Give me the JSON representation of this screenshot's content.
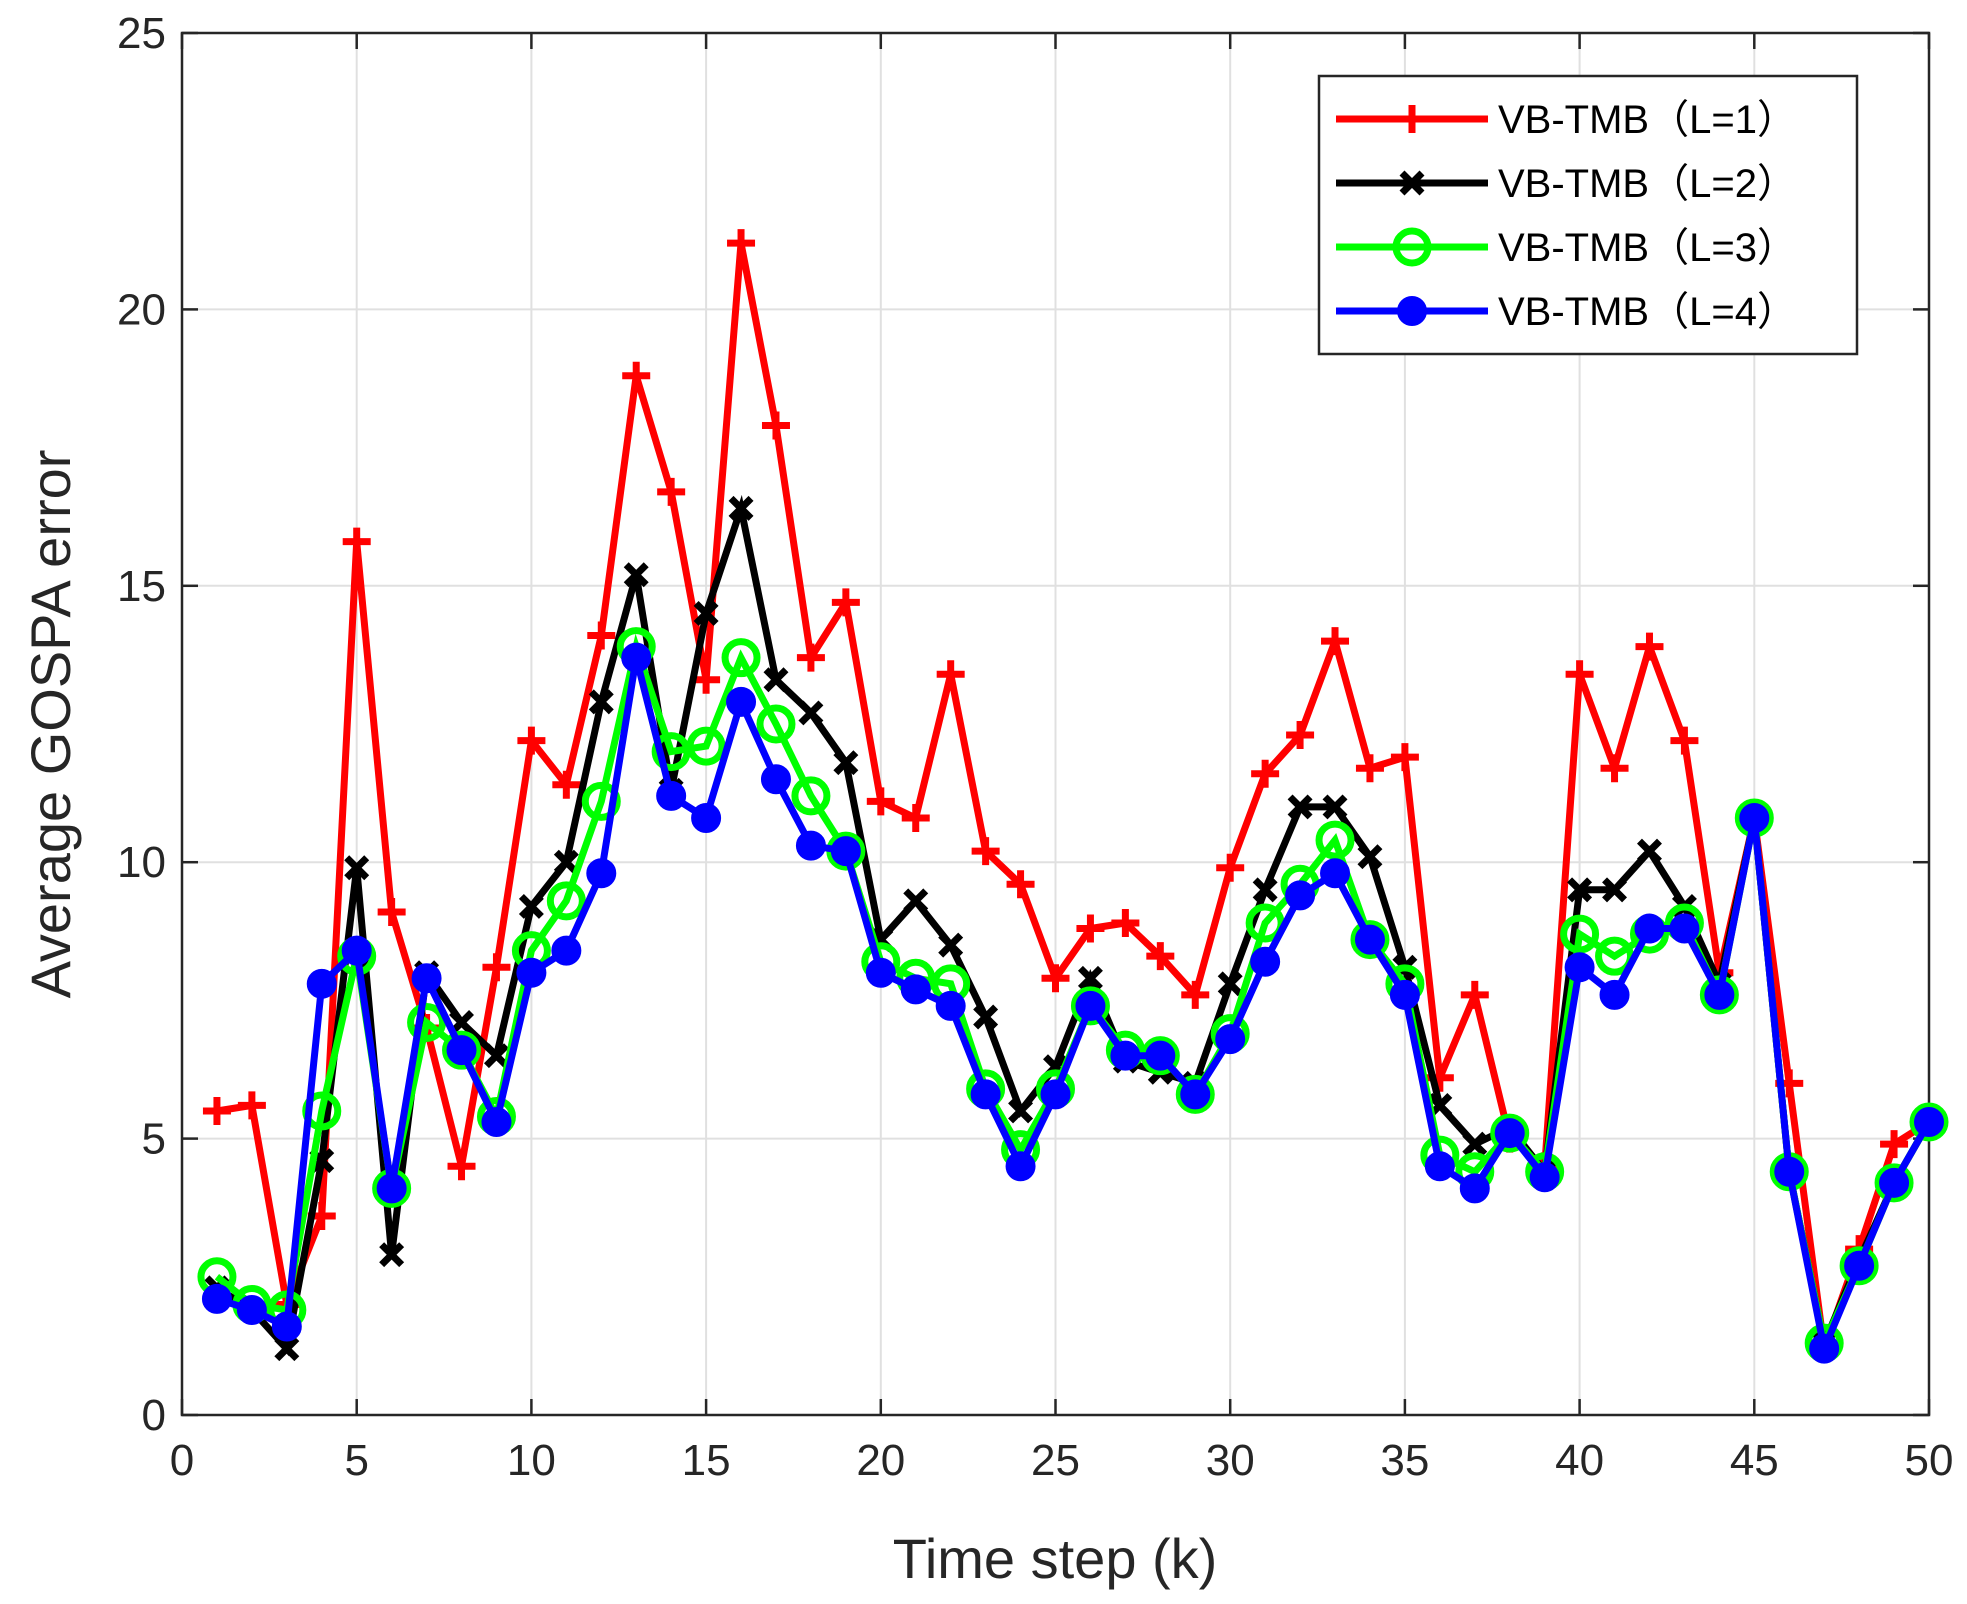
{
  "chart_data": {
    "type": "line",
    "xlabel": "Time step (k)",
    "ylabel": "Average GOSPA error",
    "xlim": [
      0,
      50
    ],
    "ylim": [
      0,
      25
    ],
    "xticks": [
      0,
      5,
      10,
      15,
      20,
      25,
      30,
      35,
      40,
      45,
      50
    ],
    "yticks": [
      0,
      5,
      10,
      15,
      20,
      25
    ],
    "grid": true,
    "legend_position": "top-right",
    "x": [
      1,
      2,
      3,
      4,
      5,
      6,
      7,
      8,
      9,
      10,
      11,
      12,
      13,
      14,
      15,
      16,
      17,
      18,
      19,
      20,
      21,
      22,
      23,
      24,
      25,
      26,
      27,
      28,
      29,
      30,
      31,
      32,
      33,
      34,
      35,
      36,
      37,
      38,
      39,
      40,
      41,
      42,
      43,
      44,
      45,
      46,
      47,
      48,
      49,
      50
    ],
    "series": [
      {
        "name": "VB-TMB（L=1）",
        "color": "#ff0000",
        "marker": "plus",
        "values": [
          5.5,
          5.6,
          2.0,
          3.6,
          15.8,
          9.1,
          7.0,
          4.5,
          8.1,
          12.2,
          11.4,
          14.1,
          18.8,
          16.7,
          13.3,
          21.2,
          17.9,
          13.7,
          14.7,
          11.1,
          10.8,
          13.4,
          10.2,
          9.6,
          7.9,
          8.8,
          8.9,
          8.3,
          7.6,
          9.9,
          11.6,
          12.3,
          14.0,
          11.7,
          11.9,
          6.1,
          7.6,
          5.0,
          4.5,
          13.4,
          11.7,
          13.9,
          12.2,
          8.0,
          10.8,
          6.0,
          1.2,
          3.0,
          4.9,
          5.3
        ]
      },
      {
        "name": "VB-TMB（L=2）",
        "color": "#000000",
        "marker": "x",
        "values": [
          2.3,
          1.9,
          1.2,
          4.6,
          9.9,
          2.9,
          8.0,
          7.1,
          6.5,
          9.2,
          10.0,
          12.9,
          15.2,
          11.3,
          14.5,
          16.4,
          13.3,
          12.7,
          11.8,
          8.6,
          9.3,
          8.5,
          7.2,
          5.5,
          6.3,
          7.9,
          6.4,
          6.2,
          6.0,
          7.8,
          9.5,
          11.0,
          11.0,
          10.1,
          8.1,
          5.6,
          4.9,
          5.2,
          4.4,
          9.5,
          9.5,
          10.2,
          9.2,
          7.8,
          10.8,
          4.4,
          1.3,
          2.8,
          4.2,
          5.3
        ]
      },
      {
        "name": "VB-TMB（L=3）",
        "color": "#00ff00",
        "marker": "circle",
        "values": [
          2.5,
          2.0,
          1.9,
          5.5,
          8.3,
          4.1,
          7.1,
          6.6,
          5.4,
          8.4,
          9.3,
          11.1,
          13.9,
          12.0,
          12.1,
          13.7,
          12.5,
          11.2,
          10.2,
          8.2,
          7.9,
          7.8,
          5.9,
          4.8,
          5.9,
          7.4,
          6.6,
          6.5,
          5.8,
          6.9,
          8.9,
          9.6,
          10.4,
          8.6,
          7.8,
          4.7,
          4.4,
          5.1,
          4.4,
          8.7,
          8.3,
          8.7,
          8.9,
          7.6,
          10.8,
          4.4,
          1.3,
          2.7,
          4.2,
          5.3
        ]
      },
      {
        "name": "VB-TMB（L=4）",
        "color": "#0000ff",
        "marker": "filled-circle",
        "values": [
          2.1,
          1.9,
          1.6,
          7.8,
          8.4,
          4.1,
          7.9,
          6.6,
          5.3,
          8.0,
          8.4,
          9.8,
          13.7,
          11.2,
          10.8,
          12.9,
          11.5,
          10.3,
          10.2,
          8.0,
          7.7,
          7.4,
          5.8,
          4.5,
          5.8,
          7.4,
          6.5,
          6.5,
          5.8,
          6.8,
          8.2,
          9.4,
          9.8,
          8.6,
          7.6,
          4.5,
          4.1,
          5.1,
          4.3,
          8.1,
          7.6,
          8.8,
          8.8,
          7.6,
          10.8,
          4.4,
          1.2,
          2.7,
          4.2,
          5.3
        ]
      }
    ]
  }
}
